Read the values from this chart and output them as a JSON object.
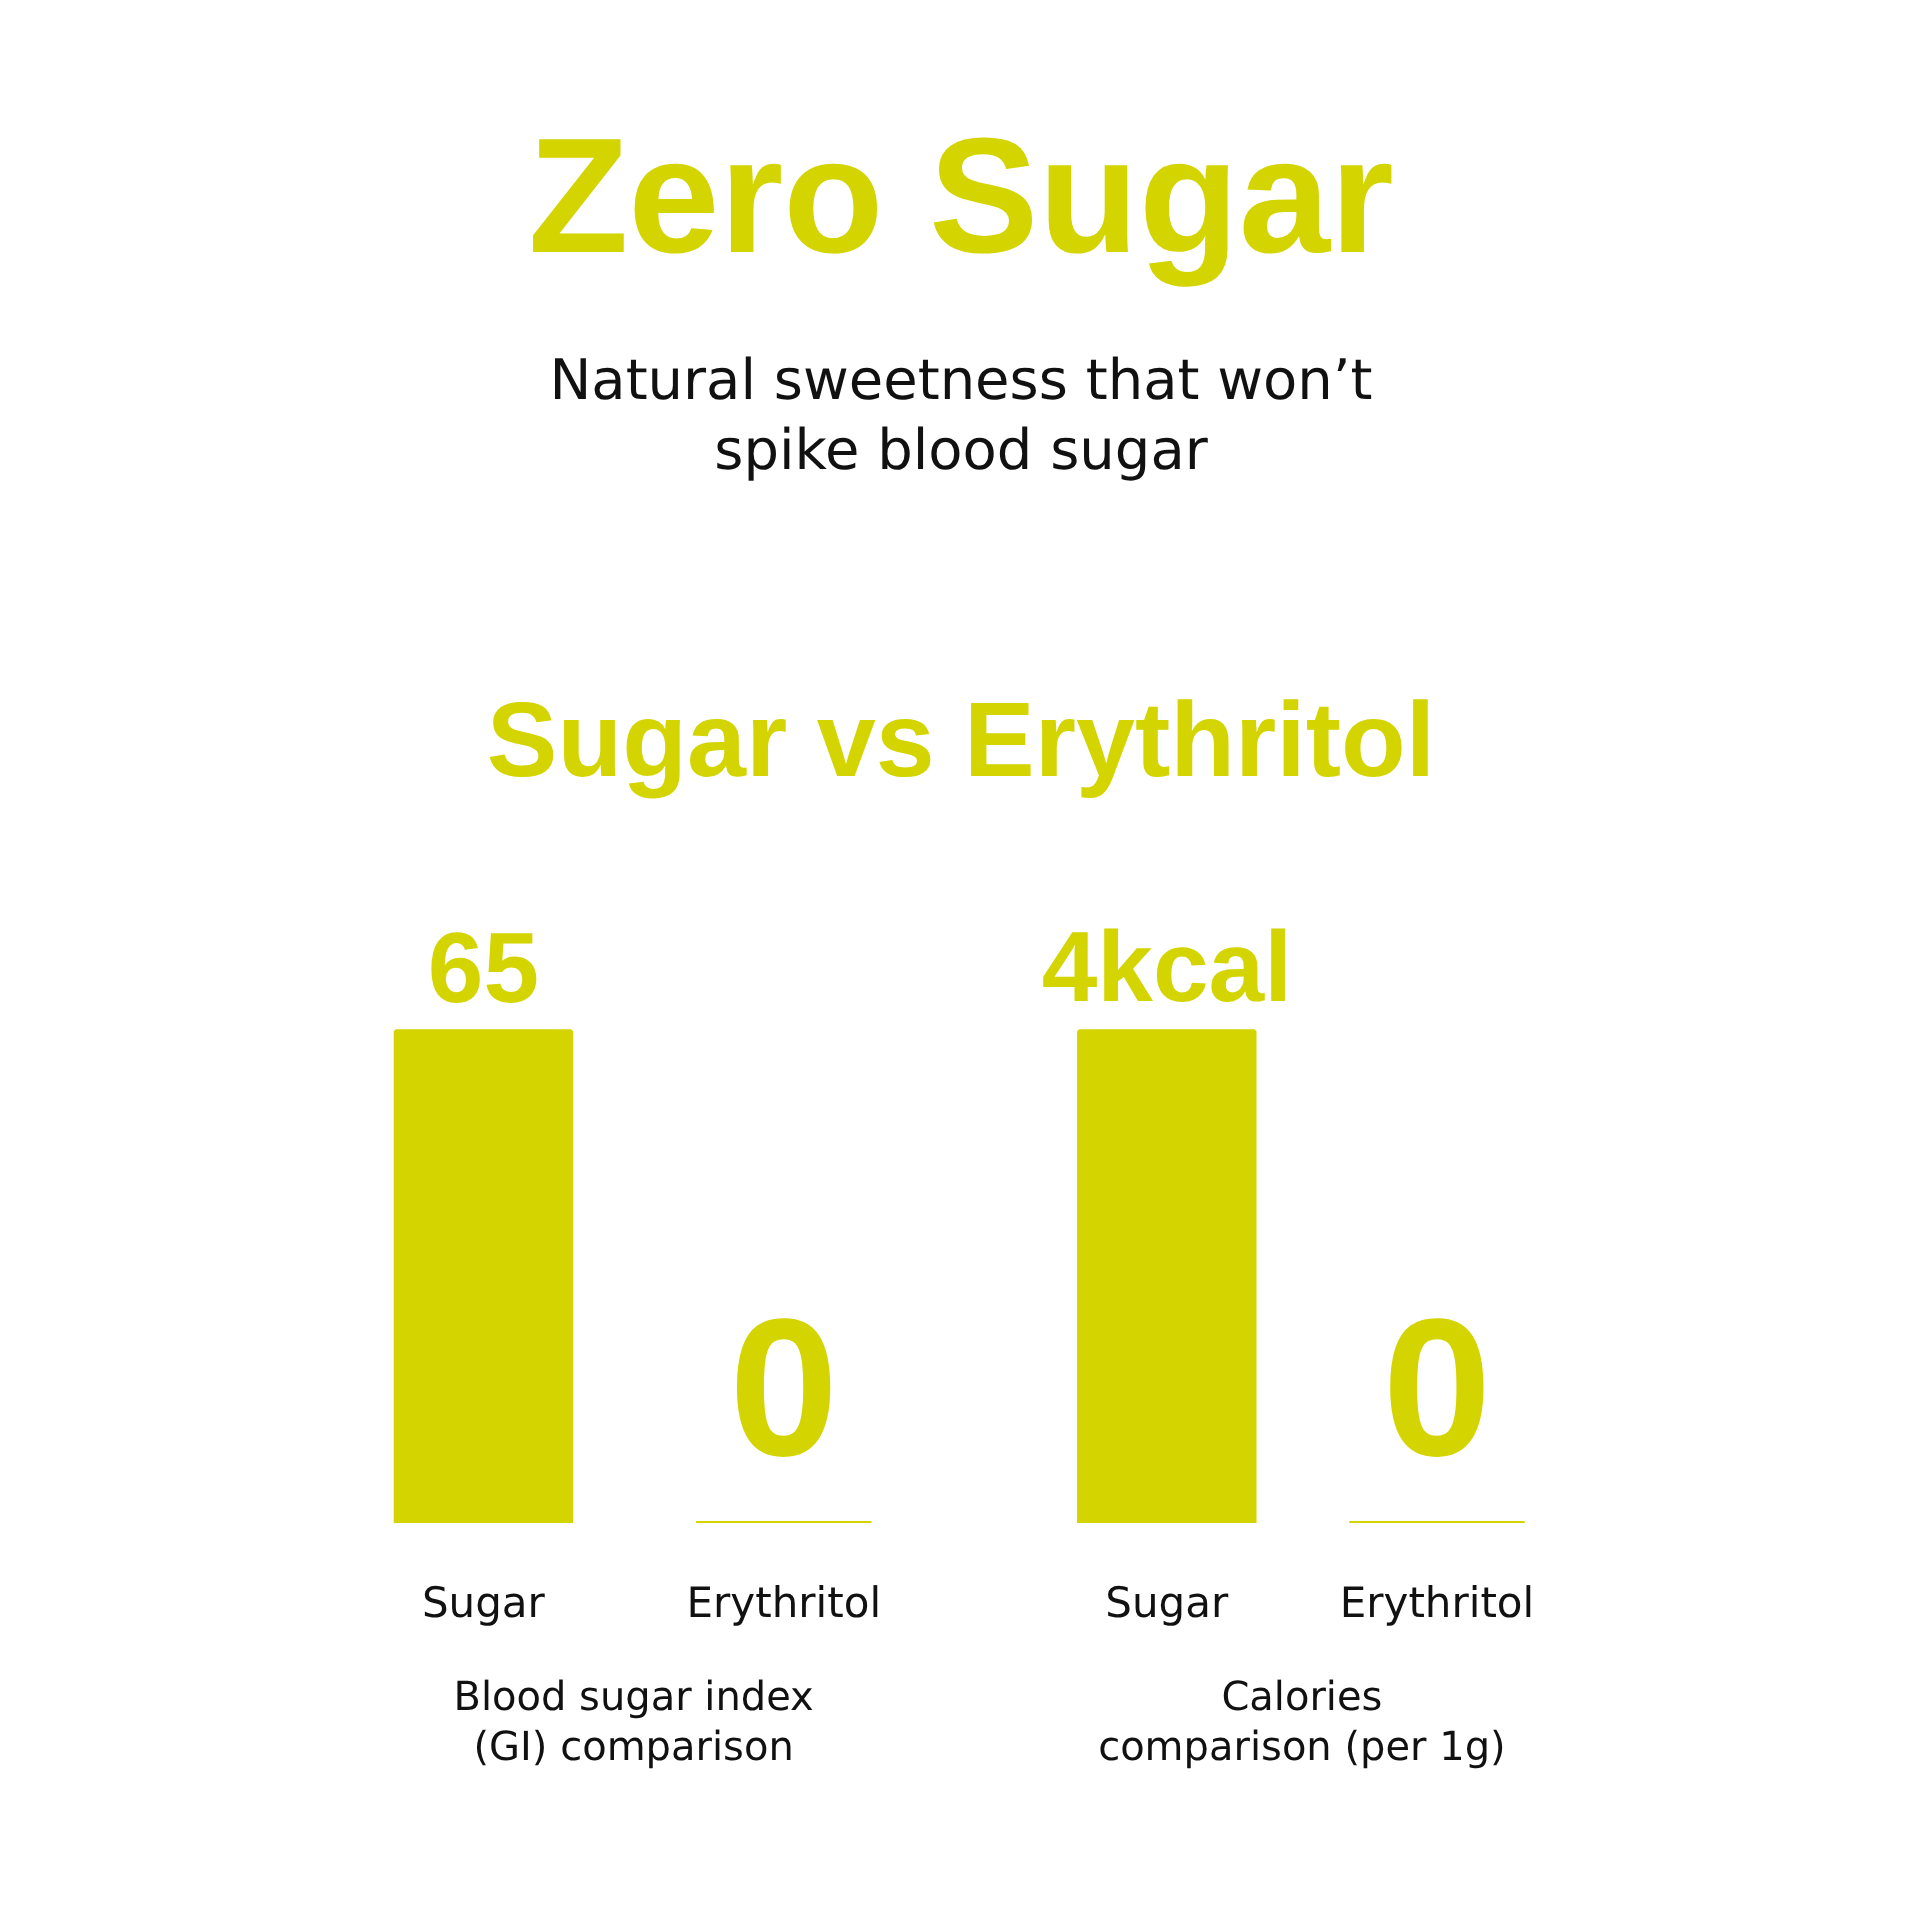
{
  "chart_data": [
    {
      "type": "other",
      "title": "Zero Sugar",
      "subtitle": "Natural sweetness that won’t\nspike blood sugar",
      "annotations": [
        "Sugar vs Erythritol"
      ]
    },
    {
      "type": "bar",
      "categories": [
        "Sugar",
        "Erythritol"
      ],
      "values": [
        65,
        0
      ],
      "color": "#d3d400",
      "data_labels": true,
      "xlabel": "Blood sugar index\n(GI) comparison",
      "tick_labels": "x"
    },
    {
      "type": "bar",
      "categories": [
        "Sugar",
        "Erythritol"
      ],
      "values": [
        4,
        0
      ],
      "color": "#d3d400",
      "value_labels": [
        "4kcal",
        "0"
      ],
      "xlabel": "Calories\ncomparison (per 1g)",
      "tick_labels": "x"
    }
  ]
}
